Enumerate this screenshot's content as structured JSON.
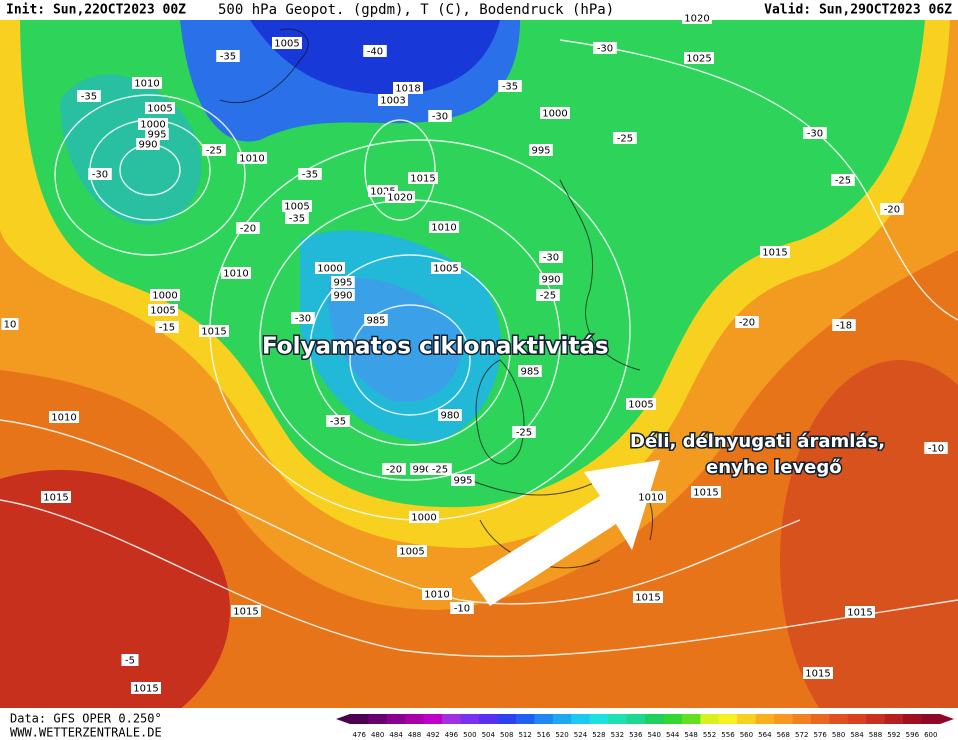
{
  "header": {
    "init": "Init: Sun,22OCT2023 00Z",
    "title": "500 hPa Geopot. (gpdm), T (C), Bodendruck (hPa)",
    "valid": "Valid: Sun,29OCT2023 06Z"
  },
  "annotations": [
    "Folyamatos ciklonaktivitás",
    "Déli, délnyugati áramlás,",
    "enyhe levegő"
  ],
  "footer": {
    "data": "Data: GFS OPER 0.250°",
    "site": "WWW.WETTERZENTRALE.DE"
  },
  "isobar_labels": [
    "1005",
    "1010",
    "1005",
    "1000",
    "995",
    "990",
    "1010",
    "1018",
    "1003",
    "1000",
    "995",
    "1015",
    "1025",
    "1020",
    "1005",
    "1010",
    "1005",
    "1000",
    "995",
    "990",
    "990",
    "985",
    "985",
    "980",
    "1005",
    "990",
    "995",
    "1000",
    "1005",
    "1010",
    "1015",
    "1015",
    "1015",
    "1010",
    "1015",
    "1010",
    "1000",
    "1005",
    "1015",
    "1010",
    "1015",
    "1015",
    "1015",
    "1015",
    "1025",
    "1020"
  ],
  "temperature_labels": [
    "-35",
    "-40",
    "-35",
    "-35",
    "-30",
    "-25",
    "-30",
    "-30",
    "-25",
    "-30",
    "-25",
    "-20",
    "-35",
    "-35",
    "-20",
    "-30",
    "-25",
    "-15",
    "-30",
    "-35",
    "-25",
    "-20",
    "-25",
    "-20",
    "-18",
    "-10",
    "-10",
    "-5",
    "10"
  ],
  "legend": {
    "values": [
      476,
      480,
      484,
      488,
      492,
      496,
      500,
      504,
      508,
      512,
      516,
      520,
      524,
      528,
      532,
      536,
      540,
      544,
      548,
      552,
      556,
      560,
      564,
      568,
      572,
      576,
      580,
      584,
      588,
      592,
      596,
      600
    ],
    "colors": [
      "#4b0052",
      "#6a006f",
      "#8a0090",
      "#a800a8",
      "#c000c8",
      "#a030e0",
      "#7a30f0",
      "#5a30f0",
      "#3040f0",
      "#1e60f0",
      "#1e88f0",
      "#1ea8f0",
      "#1ec8f0",
      "#1ee0e0",
      "#1ee0b0",
      "#1ed890",
      "#1ed060",
      "#30d830",
      "#60e020",
      "#d8f020",
      "#f8f020",
      "#f8d020",
      "#f8b020",
      "#f89820",
      "#f08020",
      "#e86820",
      "#e05020",
      "#d84020",
      "#c83020",
      "#b82020",
      "#a01020",
      "#900828"
    ]
  }
}
